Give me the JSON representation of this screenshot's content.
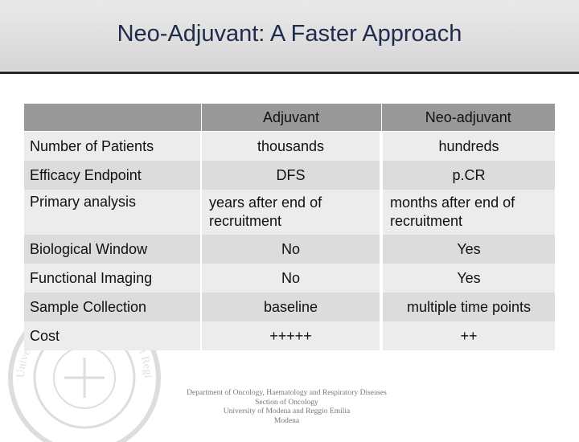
{
  "title": "Neo-Adjuvant: A Faster Approach",
  "table": {
    "headers": [
      "",
      "Adjuvant",
      "Neo-adjuvant"
    ],
    "rows": [
      [
        "Number of Patients",
        "thousands",
        "hundreds"
      ],
      [
        "Efficacy Endpoint",
        "DFS",
        "p.CR"
      ],
      [
        "Primary analysis",
        "years after end of recruitment",
        "months after end of recruitment"
      ],
      [
        "Biological Window",
        "No",
        "Yes"
      ],
      [
        "Functional Imaging",
        "No",
        "Yes"
      ],
      [
        "Sample Collection",
        "baseline",
        "multiple time points"
      ],
      [
        "Cost",
        "+++++",
        "++"
      ]
    ]
  },
  "footer": {
    "lines": [
      "Department of Oncology, Haematology and Respiratory Diseases",
      "Section of Oncology",
      "University of Modena and Reggio Emilia",
      "Modena"
    ]
  },
  "watermark": {
    "icon": "university-seal-icon",
    "text": "Universitas Studiorum Mutinensis et Regiensis"
  }
}
